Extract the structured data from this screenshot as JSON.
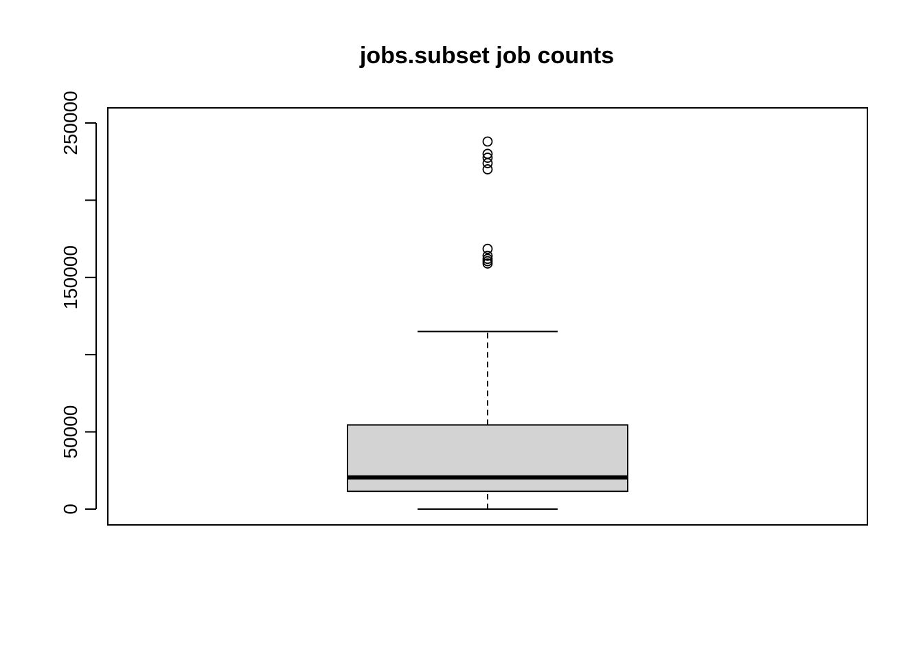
{
  "chart_data": {
    "type": "box",
    "title": "jobs.subset job counts",
    "xlabel": "",
    "ylabel": "",
    "ylim": [
      -20000,
      250000
    ],
    "y_ticks": [
      0,
      50000,
      100000,
      150000,
      200000,
      250000
    ],
    "y_tick_labels": [
      "0",
      "50000",
      "",
      "150000",
      "",
      "250000"
    ],
    "grid": false,
    "legend": "none",
    "box_fill_color": "#d3d3d3",
    "line_color": "#000000",
    "boxes": [
      {
        "min": 0,
        "q1": 11500,
        "median": 20500,
        "q3": 54500,
        "max": 115000,
        "outliers": [
          220000,
          224000,
          227500,
          230000,
          238000,
          159000,
          160500,
          162000,
          164000,
          168500
        ]
      }
    ]
  }
}
